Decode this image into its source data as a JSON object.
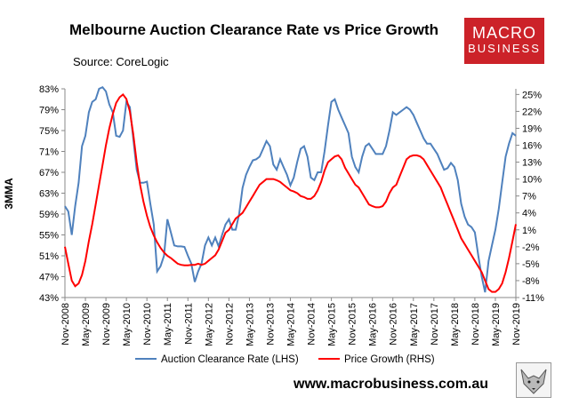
{
  "header": {
    "title": "Melbourne Auction Clearance Rate vs Price Growth",
    "source": "Source: CoreLogic",
    "logo_line1": "MACRO",
    "logo_line2": "BUSINESS",
    "website": "www.macrobusiness.com.au"
  },
  "colors": {
    "lhs": "#4f81bd",
    "rhs": "#ff0000",
    "logo": "#cc2229"
  },
  "chart_data": {
    "type": "line",
    "title": "Melbourne Auction Clearance Rate vs Price Growth",
    "ylabel": "3MMA",
    "ylim_left": [
      43,
      83
    ],
    "ylim_right": [
      -11,
      26
    ],
    "left_ticks": [
      "83%",
      "79%",
      "75%",
      "71%",
      "67%",
      "63%",
      "59%",
      "55%",
      "51%",
      "47%",
      "43%"
    ],
    "right_ticks": [
      "25%",
      "22%",
      "19%",
      "16%",
      "13%",
      "10%",
      "7%",
      "4%",
      "1%",
      "-2%",
      "-5%",
      "-8%",
      "-11%"
    ],
    "x_labels": [
      "Nov-2008",
      "May-2009",
      "Nov-2009",
      "May-2010",
      "Nov-2010",
      "May-2011",
      "Nov-2011",
      "May-2012",
      "Nov-2012",
      "May-2013",
      "Nov-2013",
      "May-2014",
      "Nov-2014",
      "May-2015",
      "Nov-2015",
      "May-2016",
      "Nov-2016",
      "May-2017",
      "Nov-2017",
      "May-2018",
      "Nov-2018",
      "May-2019",
      "Nov-2019"
    ],
    "x_start": "Nov-2008",
    "x_end": "Nov-2019",
    "grid": false,
    "legend_position": "bottom",
    "series": [
      {
        "name": "Auction Clearance Rate (LHS)",
        "axis": "left",
        "points": [
          [
            "Nov-2008",
            60.5
          ],
          [
            "Dec-2008",
            59.5
          ],
          [
            "Jan-2009",
            55.0
          ],
          [
            "Feb-2009",
            60.5
          ],
          [
            "Mar-2009",
            65.0
          ],
          [
            "Apr-2009",
            72.0
          ],
          [
            "May-2009",
            74.0
          ],
          [
            "Jun-2009",
            78.5
          ],
          [
            "Jul-2009",
            80.5
          ],
          [
            "Aug-2009",
            81.0
          ],
          [
            "Sep-2009",
            83.0
          ],
          [
            "Oct-2009",
            83.3
          ],
          [
            "Nov-2009",
            82.5
          ],
          [
            "Dec-2009",
            80.0
          ],
          [
            "Jan-2010",
            78.5
          ],
          [
            "Feb-2010",
            74.0
          ],
          [
            "Mar-2010",
            73.8
          ],
          [
            "Apr-2010",
            75.0
          ],
          [
            "May-2010",
            80.5
          ],
          [
            "Jun-2010",
            79.5
          ],
          [
            "Jul-2010",
            73.5
          ],
          [
            "Aug-2010",
            67.5
          ],
          [
            "Sep-2010",
            65.0
          ],
          [
            "Oct-2010",
            65.0
          ],
          [
            "Nov-2010",
            65.2
          ],
          [
            "Dec-2010",
            61.0
          ],
          [
            "Jan-2011",
            57.0
          ],
          [
            "Feb-2011",
            48.0
          ],
          [
            "Mar-2011",
            49.0
          ],
          [
            "Apr-2011",
            51.0
          ],
          [
            "May-2011",
            58.0
          ],
          [
            "Jun-2011",
            55.5
          ],
          [
            "Jul-2011",
            53.0
          ],
          [
            "Aug-2011",
            52.8
          ],
          [
            "Sep-2011",
            52.8
          ],
          [
            "Oct-2011",
            52.7
          ],
          [
            "Nov-2011",
            51.0
          ],
          [
            "Dec-2011",
            49.5
          ],
          [
            "Jan-2012",
            46.0
          ],
          [
            "Feb-2012",
            48.0
          ],
          [
            "Mar-2012",
            49.5
          ],
          [
            "Apr-2012",
            53.0
          ],
          [
            "May-2012",
            54.5
          ],
          [
            "Jun-2012",
            53.0
          ],
          [
            "Jul-2012",
            54.5
          ],
          [
            "Aug-2012",
            52.8
          ],
          [
            "Sep-2012",
            55.0
          ],
          [
            "Oct-2012",
            57.0
          ],
          [
            "Nov-2012",
            58.0
          ],
          [
            "Dec-2012",
            56.0
          ],
          [
            "Jan-2013",
            56.0
          ],
          [
            "Feb-2013",
            59.0
          ],
          [
            "Mar-2013",
            64.0
          ],
          [
            "Apr-2013",
            66.5
          ],
          [
            "May-2013",
            68.0
          ],
          [
            "Jun-2013",
            69.3
          ],
          [
            "Jul-2013",
            69.5
          ],
          [
            "Aug-2013",
            70.0
          ],
          [
            "Sep-2013",
            71.5
          ],
          [
            "Oct-2013",
            73.0
          ],
          [
            "Nov-2013",
            72.0
          ],
          [
            "Dec-2013",
            68.5
          ],
          [
            "Jan-2014",
            67.5
          ],
          [
            "Feb-2014",
            69.5
          ],
          [
            "Mar-2014",
            68.0
          ],
          [
            "Apr-2014",
            66.5
          ],
          [
            "May-2014",
            64.5
          ],
          [
            "Jun-2014",
            66.0
          ],
          [
            "Jul-2014",
            69.0
          ],
          [
            "Aug-2014",
            71.5
          ],
          [
            "Sep-2014",
            72.0
          ],
          [
            "Oct-2014",
            70.0
          ],
          [
            "Nov-2014",
            66.0
          ],
          [
            "Dec-2014",
            65.5
          ],
          [
            "Jan-2015",
            67.0
          ],
          [
            "Feb-2015",
            67.0
          ],
          [
            "Mar-2015",
            71.0
          ],
          [
            "Apr-2015",
            76.0
          ],
          [
            "May-2015",
            80.5
          ],
          [
            "Jun-2015",
            81.0
          ],
          [
            "Jul-2015",
            79.0
          ],
          [
            "Aug-2015",
            77.5
          ],
          [
            "Sep-2015",
            76.0
          ],
          [
            "Oct-2015",
            74.5
          ],
          [
            "Nov-2015",
            70.0
          ],
          [
            "Dec-2015",
            68.0
          ],
          [
            "Jan-2016",
            67.0
          ],
          [
            "Feb-2016",
            70.0
          ],
          [
            "Mar-2016",
            72.0
          ],
          [
            "Apr-2016",
            72.5
          ],
          [
            "May-2016",
            71.5
          ],
          [
            "Jun-2016",
            70.5
          ],
          [
            "Jul-2016",
            70.5
          ],
          [
            "Aug-2016",
            70.5
          ],
          [
            "Sep-2016",
            72.0
          ],
          [
            "Oct-2016",
            75.0
          ],
          [
            "Nov-2016",
            78.5
          ],
          [
            "Dec-2016",
            78.0
          ],
          [
            "Jan-2017",
            78.5
          ],
          [
            "Feb-2017",
            79.0
          ],
          [
            "Mar-2017",
            79.5
          ],
          [
            "Apr-2017",
            79.0
          ],
          [
            "May-2017",
            78.0
          ],
          [
            "Jun-2017",
            76.5
          ],
          [
            "Jul-2017",
            75.0
          ],
          [
            "Aug-2017",
            73.5
          ],
          [
            "Sep-2017",
            72.5
          ],
          [
            "Oct-2017",
            72.5
          ],
          [
            "Nov-2017",
            71.5
          ],
          [
            "Dec-2017",
            70.5
          ],
          [
            "Jan-2018",
            69.0
          ],
          [
            "Feb-2018",
            67.5
          ],
          [
            "Mar-2018",
            67.8
          ],
          [
            "Apr-2018",
            68.8
          ],
          [
            "May-2018",
            68.0
          ],
          [
            "Jun-2018",
            65.5
          ],
          [
            "Jul-2018",
            61.0
          ],
          [
            "Aug-2018",
            58.5
          ],
          [
            "Sep-2018",
            57.0
          ],
          [
            "Oct-2018",
            56.5
          ],
          [
            "Nov-2018",
            55.5
          ],
          [
            "Dec-2018",
            51.0
          ],
          [
            "Jan-2019",
            47.0
          ],
          [
            "Feb-2019",
            44.0
          ],
          [
            "Mar-2019",
            50.0
          ],
          [
            "Apr-2019",
            53.0
          ],
          [
            "May-2019",
            56.0
          ],
          [
            "Jun-2019",
            60.0
          ],
          [
            "Jul-2019",
            65.0
          ],
          [
            "Aug-2019",
            70.0
          ],
          [
            "Sep-2019",
            72.5
          ],
          [
            "Oct-2019",
            74.5
          ],
          [
            "Nov-2019",
            74.0
          ]
        ]
      },
      {
        "name": "Price Growth (RHS)",
        "axis": "right",
        "points": [
          [
            "Nov-2008",
            -2.0
          ],
          [
            "Dec-2008",
            -5.0
          ],
          [
            "Jan-2009",
            -8.0
          ],
          [
            "Feb-2009",
            -9.0
          ],
          [
            "Mar-2009",
            -8.5
          ],
          [
            "Apr-2009",
            -7.0
          ],
          [
            "May-2009",
            -4.5
          ],
          [
            "Jun-2009",
            -1.0
          ],
          [
            "Jul-2009",
            2.0
          ],
          [
            "Aug-2009",
            5.5
          ],
          [
            "Sep-2009",
            9.0
          ],
          [
            "Oct-2009",
            12.5
          ],
          [
            "Nov-2009",
            16.0
          ],
          [
            "Dec-2009",
            19.0
          ],
          [
            "Jan-2010",
            21.5
          ],
          [
            "Feb-2010",
            23.5
          ],
          [
            "Mar-2010",
            24.5
          ],
          [
            "Apr-2010",
            25.0
          ],
          [
            "May-2010",
            24.2
          ],
          [
            "Jun-2010",
            22.0
          ],
          [
            "Jul-2010",
            18.0
          ],
          [
            "Aug-2010",
            13.0
          ],
          [
            "Sep-2010",
            9.0
          ],
          [
            "Oct-2010",
            6.0
          ],
          [
            "Nov-2010",
            3.5
          ],
          [
            "Dec-2010",
            1.5
          ],
          [
            "Jan-2011",
            0.0
          ],
          [
            "Feb-2011",
            -1.2
          ],
          [
            "Mar-2011",
            -2.2
          ],
          [
            "Apr-2011",
            -3.0
          ],
          [
            "May-2011",
            -3.6
          ],
          [
            "Jun-2011",
            -4.0
          ],
          [
            "Jul-2011",
            -4.5
          ],
          [
            "Aug-2011",
            -5.0
          ],
          [
            "Sep-2011",
            -5.2
          ],
          [
            "Oct-2011",
            -5.3
          ],
          [
            "Nov-2011",
            -5.3
          ],
          [
            "Dec-2011",
            -5.2
          ],
          [
            "Jan-2012",
            -5.2
          ],
          [
            "Feb-2012",
            -5.0
          ],
          [
            "Mar-2012",
            -5.2
          ],
          [
            "Apr-2012",
            -5.0
          ],
          [
            "May-2012",
            -4.5
          ],
          [
            "Jun-2012",
            -4.0
          ],
          [
            "Jul-2012",
            -3.5
          ],
          [
            "Aug-2012",
            -2.5
          ],
          [
            "Sep-2012",
            -1.0
          ],
          [
            "Oct-2012",
            0.5
          ],
          [
            "Nov-2012",
            1.0
          ],
          [
            "Dec-2012",
            2.0
          ],
          [
            "Jan-2013",
            3.0
          ],
          [
            "Feb-2013",
            3.5
          ],
          [
            "Mar-2013",
            4.0
          ],
          [
            "Apr-2013",
            5.0
          ],
          [
            "May-2013",
            6.0
          ],
          [
            "Jun-2013",
            7.0
          ],
          [
            "Jul-2013",
            8.0
          ],
          [
            "Aug-2013",
            9.0
          ],
          [
            "Sep-2013",
            9.5
          ],
          [
            "Oct-2013",
            10.0
          ],
          [
            "Nov-2013",
            10.0
          ],
          [
            "Dec-2013",
            10.0
          ],
          [
            "Jan-2014",
            9.8
          ],
          [
            "Feb-2014",
            9.5
          ],
          [
            "Mar-2014",
            9.0
          ],
          [
            "Apr-2014",
            8.5
          ],
          [
            "May-2014",
            8.0
          ],
          [
            "Jun-2014",
            7.8
          ],
          [
            "Jul-2014",
            7.5
          ],
          [
            "Aug-2014",
            7.0
          ],
          [
            "Sep-2014",
            6.8
          ],
          [
            "Oct-2014",
            6.5
          ],
          [
            "Nov-2014",
            6.5
          ],
          [
            "Dec-2014",
            7.0
          ],
          [
            "Jan-2015",
            8.0
          ],
          [
            "Feb-2015",
            9.5
          ],
          [
            "Mar-2015",
            11.5
          ],
          [
            "Apr-2015",
            13.0
          ],
          [
            "May-2015",
            13.5
          ],
          [
            "Jun-2015",
            14.0
          ],
          [
            "Jul-2015",
            14.2
          ],
          [
            "Aug-2015",
            13.5
          ],
          [
            "Sep-2015",
            12.0
          ],
          [
            "Oct-2015",
            11.0
          ],
          [
            "Nov-2015",
            10.0
          ],
          [
            "Dec-2015",
            9.0
          ],
          [
            "Jan-2016",
            8.5
          ],
          [
            "Feb-2016",
            7.5
          ],
          [
            "Mar-2016",
            6.5
          ],
          [
            "Apr-2016",
            5.5
          ],
          [
            "May-2016",
            5.2
          ],
          [
            "Jun-2016",
            5.0
          ],
          [
            "Jul-2016",
            5.0
          ],
          [
            "Aug-2016",
            5.2
          ],
          [
            "Sep-2016",
            6.0
          ],
          [
            "Oct-2016",
            7.5
          ],
          [
            "Nov-2016",
            8.5
          ],
          [
            "Dec-2016",
            9.0
          ],
          [
            "Jan-2017",
            10.5
          ],
          [
            "Feb-2017",
            12.0
          ],
          [
            "Mar-2017",
            13.5
          ],
          [
            "Apr-2017",
            14.0
          ],
          [
            "May-2017",
            14.2
          ],
          [
            "Jun-2017",
            14.2
          ],
          [
            "Jul-2017",
            14.0
          ],
          [
            "Aug-2017",
            13.5
          ],
          [
            "Sep-2017",
            12.5
          ],
          [
            "Oct-2017",
            11.5
          ],
          [
            "Nov-2017",
            10.5
          ],
          [
            "Dec-2017",
            9.5
          ],
          [
            "Jan-2018",
            8.5
          ],
          [
            "Feb-2018",
            7.0
          ],
          [
            "Mar-2018",
            5.5
          ],
          [
            "Apr-2018",
            4.0
          ],
          [
            "May-2018",
            2.5
          ],
          [
            "Jun-2018",
            1.0
          ],
          [
            "Jul-2018",
            -0.5
          ],
          [
            "Aug-2018",
            -1.5
          ],
          [
            "Sep-2018",
            -2.5
          ],
          [
            "Oct-2018",
            -3.5
          ],
          [
            "Nov-2018",
            -4.5
          ],
          [
            "Dec-2018",
            -5.5
          ],
          [
            "Jan-2019",
            -6.5
          ],
          [
            "Feb-2019",
            -8.0
          ],
          [
            "Mar-2019",
            -9.5
          ],
          [
            "Apr-2019",
            -10.0
          ],
          [
            "May-2019",
            -10.0
          ],
          [
            "Jun-2019",
            -9.5
          ],
          [
            "Jul-2019",
            -8.5
          ],
          [
            "Aug-2019",
            -6.5
          ],
          [
            "Sep-2019",
            -4.0
          ],
          [
            "Oct-2019",
            -1.0
          ],
          [
            "Nov-2019",
            2.0
          ]
        ]
      }
    ]
  }
}
